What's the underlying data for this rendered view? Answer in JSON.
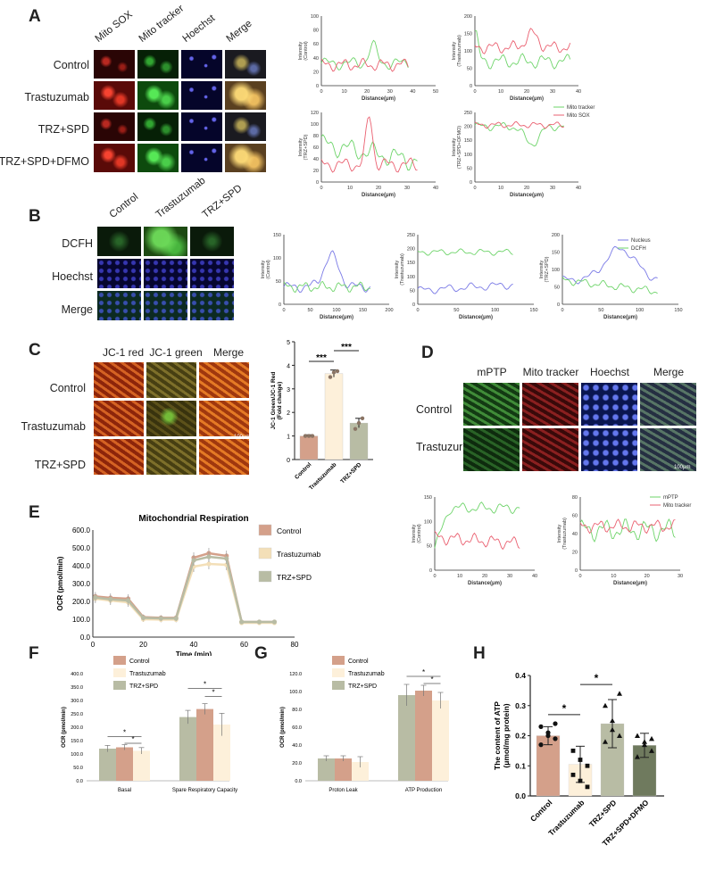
{
  "colors": {
    "green": "#6ed46a",
    "red": "#ea6070",
    "blue": "#7a7ae6",
    "control": "#d4a08a",
    "trastuzumab": "#fdf0da",
    "trz_spd": "#b8bca4",
    "dfmo": "#6f7a5e",
    "ctrl_dot": "#8a7464"
  },
  "panel_a": {
    "label": "A",
    "columns": [
      "Mito SOX",
      "Mito tracker",
      "Hoechst",
      "Merge"
    ],
    "rows": [
      "Control",
      "Trastuzumab",
      "TRZ+SPD",
      "TRZ+SPD+DFMO"
    ],
    "legend": [
      "Mito tracker",
      "Mito SOX"
    ],
    "plots": [
      {
        "ylabel": [
          "Intensity",
          "(Control)"
        ],
        "xlabel": "Distance(μm)",
        "xticks": [
          "0",
          "10",
          "20",
          "30",
          "40",
          "50"
        ],
        "yticks": [
          "0",
          "20",
          "40",
          "60",
          "80",
          "100"
        ]
      },
      {
        "ylabel": [
          "Intensity",
          "(Trastuzumab)"
        ],
        "xlabel": "Distance(μm)",
        "xticks": [
          "0",
          "10",
          "20",
          "30",
          "40"
        ],
        "yticks": [
          "0",
          "50",
          "100",
          "150",
          "200"
        ]
      },
      {
        "ylabel": [
          "Intensity",
          "(TRZ+SPD)"
        ],
        "xlabel": "Distance(μm)",
        "xticks": [
          "0",
          "10",
          "20",
          "30",
          "40"
        ],
        "yticks": [
          "0",
          "20",
          "40",
          "60",
          "80",
          "100",
          "120"
        ]
      },
      {
        "ylabel": [
          "Intensity",
          "(TRZ+SPD+DFMO)"
        ],
        "xlabel": "Distance(μm)",
        "xticks": [
          "0",
          "10",
          "20",
          "30",
          "40"
        ],
        "yticks": [
          "0",
          "50",
          "100",
          "150",
          "200",
          "250"
        ]
      }
    ]
  },
  "panel_b": {
    "label": "B",
    "columns": [
      "Control",
      "Trastuzumab",
      "TRZ+SPD"
    ],
    "rows": [
      "DCFH",
      "Hoechst",
      "Merge"
    ],
    "legend": [
      "Nucleus",
      "DCFH"
    ],
    "plots": [
      {
        "ylabel": [
          "Intensity",
          "(Control)"
        ],
        "xlabel": "Distance(μm)",
        "xticks": [
          "0",
          "50",
          "100",
          "150",
          "200"
        ],
        "yticks": [
          "0",
          "50",
          "100",
          "150"
        ]
      },
      {
        "ylabel": [
          "Intensity",
          "(Trastuzumab)"
        ],
        "xlabel": "Distance(μm)",
        "xticks": [
          "0",
          "50",
          "100",
          "150"
        ],
        "yticks": [
          "0",
          "50",
          "100",
          "150",
          "200",
          "250"
        ]
      },
      {
        "ylabel": [
          "Intensity",
          "(TRZ+SPD)"
        ],
        "xlabel": "Distance(μm)",
        "xticks": [
          "0",
          "50",
          "100",
          "150"
        ],
        "yticks": [
          "0",
          "50",
          "100",
          "150",
          "200"
        ]
      }
    ]
  },
  "panel_c": {
    "label": "C",
    "columns": [
      "JC-1 red",
      "JC-1 green",
      "Merge"
    ],
    "rows": [
      "Control",
      "Trastuzumab",
      "TRZ+SPD"
    ],
    "scale_bar": "100μm",
    "sig": [
      "***",
      "***"
    ]
  },
  "panel_d": {
    "label": "D",
    "columns": [
      "mPTP",
      "Mito tracker",
      "Hoechst",
      "Merge"
    ],
    "rows": [
      "Control",
      "Trastuzumab"
    ],
    "scale_bar": "100μm",
    "legend": [
      "mPTP",
      "Mito tracker"
    ],
    "plots": [
      {
        "ylabel": [
          "Intensity",
          "(Control)"
        ],
        "xlabel": "Distance(μm)",
        "xticks": [
          "0",
          "10",
          "20",
          "30",
          "40"
        ],
        "yticks": [
          "0",
          "50",
          "100",
          "150"
        ]
      },
      {
        "ylabel": [
          "Intensity",
          "(Trastuzumab)"
        ],
        "xlabel": "Distance(μm)",
        "xticks": [
          "0",
          "10",
          "20",
          "30"
        ],
        "yticks": [
          "0",
          "20",
          "40",
          "60",
          "80"
        ]
      }
    ]
  },
  "panel_e": {
    "label": "E"
  },
  "panel_f": {
    "label": "F",
    "sig": [
      "*",
      "*",
      "*",
      "*"
    ]
  },
  "panel_g": {
    "label": "G",
    "sig": [
      "*",
      "*"
    ]
  },
  "panel_h": {
    "label": "H",
    "sig": [
      "*",
      "*"
    ]
  },
  "chart_data": [
    {
      "id": "C",
      "type": "bar",
      "categories": [
        "Control",
        "Trastuzumab",
        "TRZ+SPD"
      ],
      "values": [
        1.0,
        3.65,
        1.55
      ],
      "errors": [
        0.05,
        0.15,
        0.2
      ],
      "points": [
        [
          1.0,
          1.0,
          1.0
        ],
        [
          3.5,
          3.7,
          3.75
        ],
        [
          1.3,
          1.55,
          1.75
        ]
      ],
      "ylabel": [
        "JC-1 Green/JC-1 Red",
        "(Fold change)"
      ],
      "yticks": [
        "0",
        "1",
        "2",
        "3",
        "4",
        "5"
      ],
      "ylim": [
        0,
        5
      ]
    },
    {
      "id": "E",
      "type": "line",
      "title": "Mitochondrial Respiration",
      "xlabel": "Time (min)",
      "ylabel": "OCR (pmol/min)",
      "xticks": [
        "0",
        "20",
        "40",
        "60",
        "80"
      ],
      "yticks": [
        "0.0",
        "100.0",
        "200.0",
        "300.0",
        "400.0",
        "500.0",
        "600.0"
      ],
      "xlim": [
        0,
        80
      ],
      "ylim": [
        0,
        600
      ],
      "x": [
        1,
        7,
        14,
        20,
        27,
        33,
        40,
        46,
        53,
        59,
        66,
        72
      ],
      "series": [
        {
          "name": "Control",
          "values": [
            228,
            220,
            215,
            112,
            108,
            108,
            445,
            470,
            455,
            85,
            85,
            85
          ],
          "error": [
            25,
            25,
            25,
            15,
            15,
            15,
            30,
            30,
            30,
            10,
            10,
            10
          ]
        },
        {
          "name": "Trastuzumab",
          "values": [
            215,
            205,
            195,
            100,
            98,
            98,
            395,
            410,
            405,
            80,
            80,
            80
          ],
          "error": [
            25,
            25,
            25,
            15,
            15,
            15,
            30,
            30,
            30,
            10,
            10,
            10
          ]
        },
        {
          "name": "TRZ+SPD",
          "values": [
            222,
            212,
            205,
            108,
            105,
            105,
            430,
            450,
            440,
            85,
            85,
            85
          ],
          "error": [
            25,
            25,
            25,
            15,
            15,
            15,
            30,
            30,
            30,
            10,
            10,
            10
          ]
        }
      ]
    },
    {
      "id": "F",
      "type": "bar",
      "categories": [
        "Basal",
        "Spare Respiratory Capacity"
      ],
      "ylabel": "OCR (pmol/min)",
      "yticks": [
        "0.0",
        "50.0",
        "100.0",
        "150.0",
        "200.0",
        "250.0",
        "300.0",
        "350.0",
        "400.0"
      ],
      "ylim": [
        0,
        400
      ],
      "bar_order": [
        "TRZ+SPD",
        "Control",
        "Trastuzumab"
      ],
      "legend_order": [
        "Control",
        "Trastuzumab",
        "TRZ+SPD"
      ],
      "series": [
        {
          "name": "TRZ+SPD",
          "values": [
            120,
            238
          ],
          "error": [
            12,
            25
          ]
        },
        {
          "name": "Control",
          "values": [
            125,
            268
          ],
          "error": [
            10,
            20
          ]
        },
        {
          "name": "Trastuzumab",
          "values": [
            112,
            210
          ],
          "error": [
            12,
            42
          ]
        }
      ]
    },
    {
      "id": "G",
      "type": "bar",
      "categories": [
        "Proton Leak",
        "ATP Production"
      ],
      "ylabel": "OCR (pmol/min)",
      "yticks": [
        "0.0",
        "20.0",
        "40.0",
        "60.0",
        "80.0",
        "100.0",
        "120.0"
      ],
      "ylim": [
        0,
        120
      ],
      "bar_order": [
        "TRZ+SPD",
        "Control",
        "Trastuzumab"
      ],
      "legend_order": [
        "Control",
        "Trastuzumab",
        "TRZ+SPD"
      ],
      "series": [
        {
          "name": "TRZ+SPD",
          "values": [
            25,
            96
          ],
          "error": [
            3,
            12
          ]
        },
        {
          "name": "Control",
          "values": [
            25,
            101
          ],
          "error": [
            3,
            6
          ]
        },
        {
          "name": "Trastuzumab",
          "values": [
            21,
            90
          ],
          "error": [
            6,
            9
          ]
        }
      ]
    },
    {
      "id": "H",
      "type": "bar",
      "categories": [
        "Control",
        "Trastuzumab",
        "TRZ+SPD",
        "TRZ+SPD+DFMO"
      ],
      "values": [
        0.2,
        0.105,
        0.24,
        0.168
      ],
      "errors": [
        0.03,
        0.06,
        0.08,
        0.04
      ],
      "points": [
        [
          0.23,
          0.21,
          0.19,
          0.17,
          0.2,
          0.24
        ],
        [
          0.15,
          0.05,
          0.03,
          0.07,
          0.12,
          0.1
        ],
        [
          0.3,
          0.25,
          0.2,
          0.18,
          0.22,
          0.34
        ],
        [
          0.2,
          0.18,
          0.15,
          0.13,
          0.17,
          0.19
        ]
      ],
      "ylabel": [
        "The content of ATP",
        "(μmol/mg protein)"
      ],
      "yticks": [
        "0.0",
        "0.1",
        "0.2",
        "0.3",
        "0.4"
      ],
      "ylim": [
        0,
        0.4
      ]
    }
  ]
}
